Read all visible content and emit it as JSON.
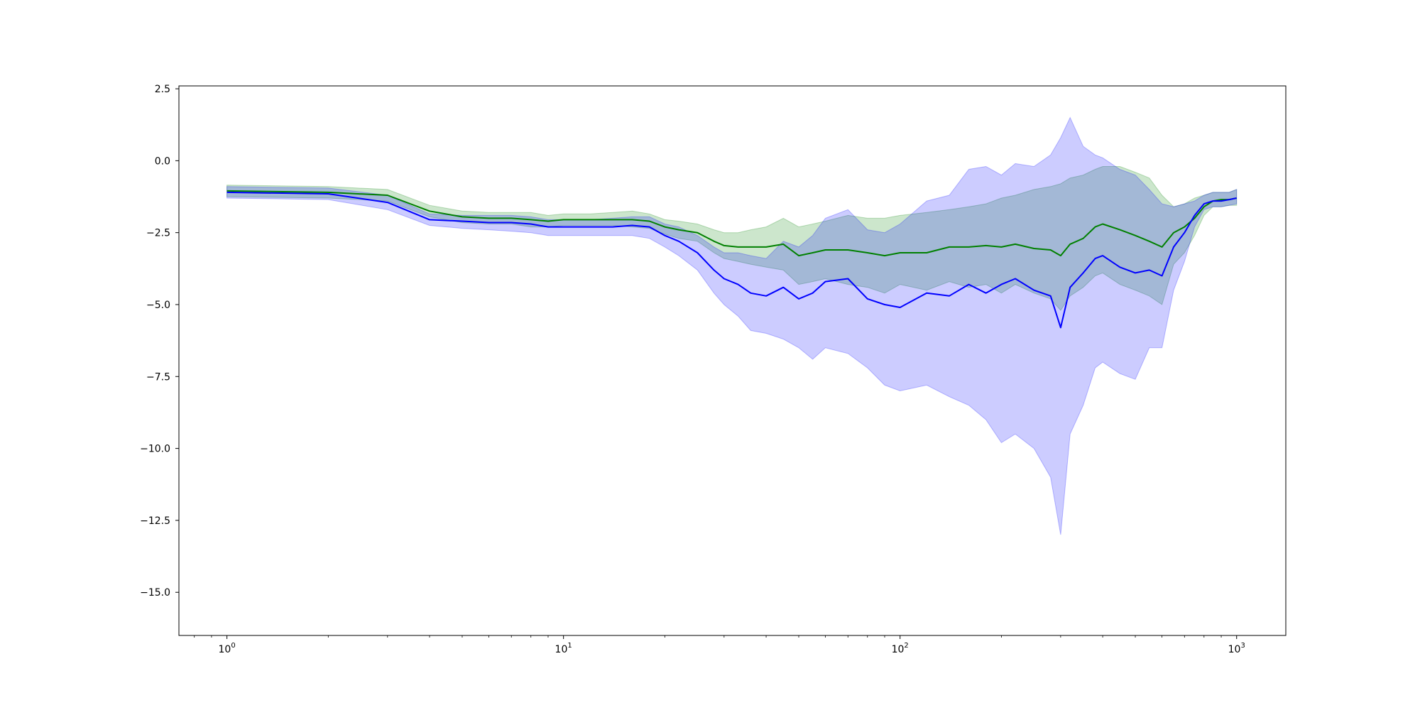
{
  "chart_data": {
    "type": "line",
    "title": "",
    "xlabel": "",
    "ylabel": "",
    "xscale": "log",
    "xlim": [
      0.72,
      1400
    ],
    "ylim": [
      -16.5,
      2.6
    ],
    "grid": false,
    "legend": "none",
    "x_ticks": [
      {
        "base": "10",
        "exp": "0",
        "value": 1
      },
      {
        "base": "10",
        "exp": "1",
        "value": 10
      },
      {
        "base": "10",
        "exp": "2",
        "value": 100
      },
      {
        "base": "10",
        "exp": "3",
        "value": 1000
      }
    ],
    "y_ticks": [
      {
        "label": "2.5",
        "value": 2.5
      },
      {
        "label": "0.0",
        "value": 0.0
      },
      {
        "label": "−2.5",
        "value": -2.5
      },
      {
        "label": "−5.0",
        "value": -5.0
      },
      {
        "label": "−7.5",
        "value": -7.5
      },
      {
        "label": "−10.0",
        "value": -10.0
      },
      {
        "label": "−12.5",
        "value": -12.5
      },
      {
        "label": "−15.0",
        "value": -15.0
      }
    ],
    "x": [
      1,
      2,
      3,
      4,
      5,
      6,
      7,
      8,
      9,
      10,
      12,
      14,
      16,
      18,
      20,
      22,
      25,
      28,
      30,
      33,
      36,
      40,
      45,
      50,
      55,
      60,
      70,
      80,
      90,
      100,
      120,
      140,
      160,
      180,
      200,
      220,
      250,
      280,
      300,
      320,
      350,
      380,
      400,
      450,
      500,
      550,
      600,
      650,
      700,
      750,
      800,
      850,
      900,
      950,
      1000
    ],
    "series": [
      {
        "color": "#008000",
        "band_color": "#008000",
        "values": [
          -1.05,
          -1.1,
          -1.2,
          -1.75,
          -1.95,
          -2.0,
          -2.0,
          -2.05,
          -2.1,
          -2.05,
          -2.05,
          -2.05,
          -2.05,
          -2.1,
          -2.3,
          -2.4,
          -2.5,
          -2.8,
          -2.95,
          -3.0,
          -3.0,
          -3.0,
          -2.9,
          -3.3,
          -3.2,
          -3.1,
          -3.1,
          -3.2,
          -3.3,
          -3.2,
          -3.2,
          -3.0,
          -3.0,
          -2.95,
          -3.0,
          -2.9,
          -3.05,
          -3.1,
          -3.3,
          -2.9,
          -2.7,
          -2.3,
          -2.2,
          -2.4,
          -2.6,
          -2.8,
          -3.0,
          -2.5,
          -2.3,
          -2.0,
          -1.6,
          -1.4,
          -1.35,
          -1.35,
          -1.3
        ],
        "lower": [
          -1.25,
          -1.3,
          -1.4,
          -1.95,
          -2.15,
          -2.2,
          -2.2,
          -2.3,
          -2.3,
          -2.25,
          -2.25,
          -2.25,
          -2.3,
          -2.35,
          -2.55,
          -2.7,
          -2.8,
          -3.2,
          -3.4,
          -3.5,
          -3.6,
          -3.7,
          -3.8,
          -4.3,
          -4.2,
          -4.1,
          -4.3,
          -4.4,
          -4.6,
          -4.3,
          -4.5,
          -4.2,
          -4.4,
          -4.3,
          -4.6,
          -4.3,
          -4.6,
          -4.8,
          -5.2,
          -4.7,
          -4.4,
          -4.0,
          -3.9,
          -4.3,
          -4.5,
          -4.7,
          -5.0,
          -3.6,
          -3.2,
          -2.6,
          -1.9,
          -1.6,
          -1.6,
          -1.55,
          -1.55
        ],
        "upper": [
          -0.85,
          -0.9,
          -1.0,
          -1.55,
          -1.75,
          -1.8,
          -1.8,
          -1.8,
          -1.9,
          -1.85,
          -1.85,
          -1.8,
          -1.75,
          -1.85,
          -2.05,
          -2.1,
          -2.2,
          -2.4,
          -2.5,
          -2.5,
          -2.4,
          -2.3,
          -2.0,
          -2.3,
          -2.2,
          -2.1,
          -1.9,
          -2.0,
          -2.0,
          -1.9,
          -1.8,
          -1.7,
          -1.6,
          -1.5,
          -1.3,
          -1.2,
          -1.0,
          -0.9,
          -0.8,
          -0.6,
          -0.5,
          -0.3,
          -0.2,
          -0.2,
          -0.4,
          -0.6,
          -1.2,
          -1.6,
          -1.5,
          -1.3,
          -1.2,
          -1.1,
          -1.1,
          -1.1,
          -1.0
        ]
      },
      {
        "color": "#0000ff",
        "band_color": "#0000ff",
        "values": [
          -1.1,
          -1.15,
          -1.45,
          -2.05,
          -2.1,
          -2.15,
          -2.15,
          -2.2,
          -2.3,
          -2.3,
          -2.3,
          -2.3,
          -2.25,
          -2.3,
          -2.6,
          -2.8,
          -3.2,
          -3.8,
          -4.1,
          -4.3,
          -4.6,
          -4.7,
          -4.4,
          -4.8,
          -4.6,
          -4.2,
          -4.1,
          -4.8,
          -5.0,
          -5.1,
          -4.6,
          -4.7,
          -4.3,
          -4.6,
          -4.3,
          -4.1,
          -4.5,
          -4.7,
          -5.8,
          -4.4,
          -3.9,
          -3.4,
          -3.3,
          -3.7,
          -3.9,
          -3.8,
          -4.0,
          -3.0,
          -2.5,
          -1.9,
          -1.5,
          -1.4,
          -1.4,
          -1.35,
          -1.3
        ],
        "lower": [
          -1.3,
          -1.35,
          -1.7,
          -2.25,
          -2.35,
          -2.4,
          -2.45,
          -2.5,
          -2.6,
          -2.6,
          -2.6,
          -2.6,
          -2.6,
          -2.7,
          -3.0,
          -3.3,
          -3.8,
          -4.6,
          -5.0,
          -5.4,
          -5.9,
          -6.0,
          -6.2,
          -6.5,
          -6.9,
          -6.5,
          -6.7,
          -7.2,
          -7.8,
          -8.0,
          -7.8,
          -8.2,
          -8.5,
          -9.0,
          -9.8,
          -9.5,
          -10.0,
          -11.0,
          -13.0,
          -9.5,
          -8.5,
          -7.2,
          -7.0,
          -7.4,
          -7.6,
          -6.5,
          -6.5,
          -4.5,
          -3.5,
          -2.3,
          -1.7,
          -1.6,
          -1.6,
          -1.55,
          -1.5
        ],
        "upper": [
          -0.9,
          -0.95,
          -1.2,
          -1.85,
          -1.9,
          -1.9,
          -1.9,
          -1.95,
          -2.05,
          -2.05,
          -2.05,
          -2.0,
          -1.95,
          -1.95,
          -2.2,
          -2.3,
          -2.6,
          -3.0,
          -3.2,
          -3.2,
          -3.3,
          -3.4,
          -2.8,
          -3.0,
          -2.6,
          -2.0,
          -1.7,
          -2.4,
          -2.5,
          -2.2,
          -1.4,
          -1.2,
          -0.3,
          -0.2,
          -0.5,
          -0.1,
          -0.2,
          0.2,
          0.8,
          1.5,
          0.5,
          0.2,
          0.1,
          -0.3,
          -0.5,
          -1.0,
          -1.5,
          -1.6,
          -1.5,
          -1.4,
          -1.2,
          -1.1,
          -1.1,
          -1.1,
          -1.0
        ]
      }
    ]
  }
}
